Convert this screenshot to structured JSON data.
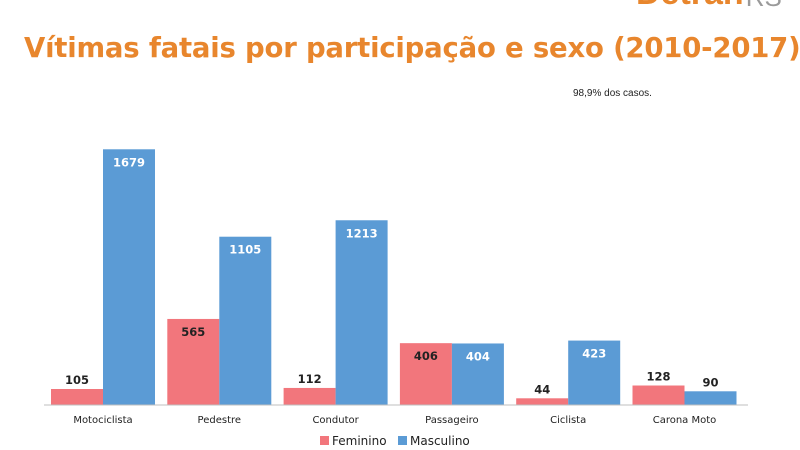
{
  "logo": {
    "main": "Detran",
    "sub": "RS"
  },
  "title": "Vítimas fatais por participação e sexo (2010-2017)*",
  "note": "98,9% dos casos.",
  "colors": {
    "feminino": "#f2767c",
    "masculino": "#5b9bd5",
    "title": "#e8862d"
  },
  "chart_data": {
    "type": "bar",
    "categories": [
      "Motociclista",
      "Pedestre",
      "Condutor",
      "Passageiro",
      "Ciclista",
      "Carona Moto"
    ],
    "series": [
      {
        "name": "Feminino",
        "values": [
          105,
          565,
          112,
          406,
          44,
          128
        ]
      },
      {
        "name": "Masculino",
        "values": [
          1679,
          1105,
          1213,
          404,
          423,
          90
        ]
      }
    ],
    "legend_position": "bottom-center",
    "grid": false,
    "data_labels": true
  }
}
